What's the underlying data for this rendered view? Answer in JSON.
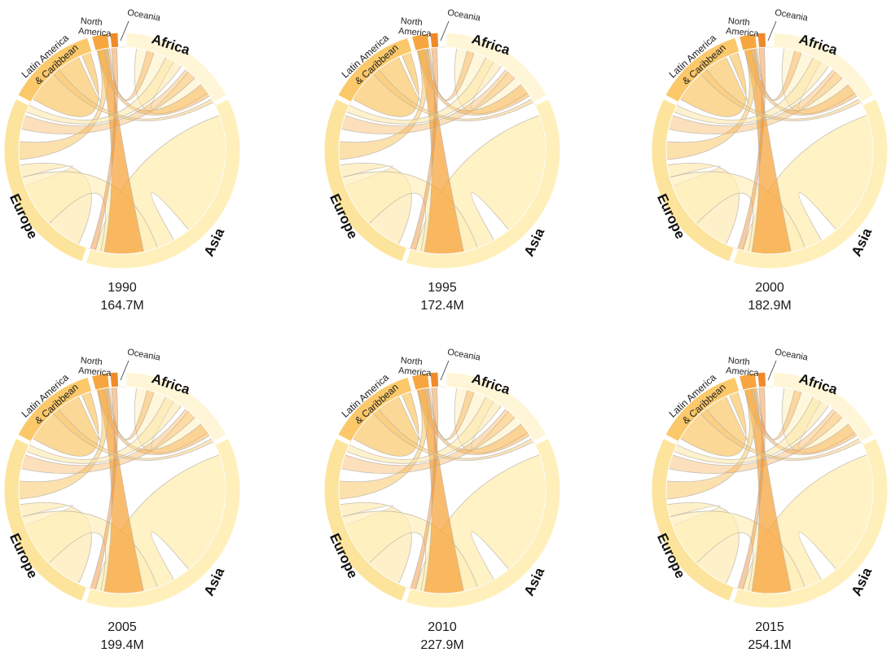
{
  "regions": {
    "africa": "Africa",
    "asia": "Asia",
    "europe": "Europe",
    "latin_line1": "Latin America",
    "latin_line2": "& Caribbean",
    "north_line1": "North",
    "north_line2": "America",
    "oceania": "Oceania"
  },
  "colors": {
    "africa": "#fff6d8",
    "asia": "#fff0bb",
    "europe": "#fde49c",
    "latin": "#fbc86a",
    "north": "#f7a63f",
    "oceania": "#ef8a2a",
    "chord_outline": "#b9b2a6"
  },
  "panels": [
    {
      "year": "1990",
      "total": "164.7M"
    },
    {
      "year": "1995",
      "total": "172.4M"
    },
    {
      "year": "2000",
      "total": "182.9M"
    },
    {
      "year": "2005",
      "total": "199.4M"
    },
    {
      "year": "2010",
      "total": "227.9M"
    },
    {
      "year": "2015",
      "total": "254.1M"
    }
  ]
}
